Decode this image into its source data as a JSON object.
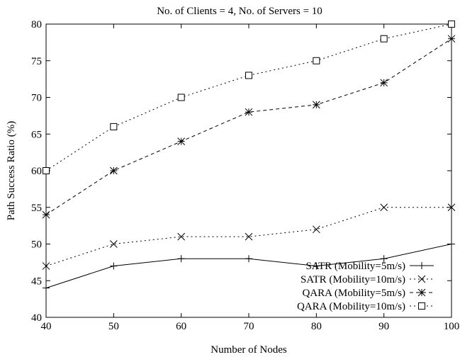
{
  "chart_data": {
    "type": "line",
    "title": "No. of Clients = 4,    No. of Servers = 10",
    "xlabel": "Number of Nodes",
    "ylabel": "Path Success Ratio (%)",
    "xlim": [
      40,
      100
    ],
    "ylim": [
      40,
      80
    ],
    "x_ticks": [
      40,
      50,
      60,
      70,
      80,
      90,
      100
    ],
    "y_ticks": [
      40,
      45,
      50,
      55,
      60,
      65,
      70,
      75,
      80
    ],
    "grid": false,
    "legend_position": "bottom-right",
    "x": [
      40,
      50,
      60,
      70,
      80,
      90,
      100
    ],
    "series": [
      {
        "name": "SATR (Mobility=5m/s)",
        "marker": "plus",
        "line": "solid",
        "values": [
          44,
          47,
          48,
          48,
          47,
          48,
          50
        ]
      },
      {
        "name": "SATR (Mobility=10m/s)",
        "marker": "cross",
        "line": "dotted",
        "values": [
          47,
          50,
          51,
          51,
          52,
          55,
          55
        ]
      },
      {
        "name": "QARA (Mobility=5m/s)",
        "marker": "star",
        "line": "dashed",
        "values": [
          54,
          60,
          64,
          68,
          69,
          72,
          78
        ]
      },
      {
        "name": "QARA (Mobility=10m/s)",
        "marker": "square",
        "line": "dotted",
        "values": [
          60,
          66,
          70,
          73,
          75,
          78,
          80
        ]
      }
    ]
  }
}
